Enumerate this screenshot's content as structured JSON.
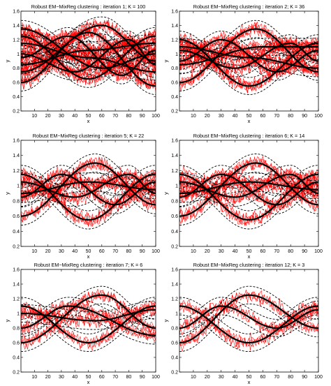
{
  "colors": {
    "noisy_curve": "#ff0000",
    "cluster_mean": "#000000",
    "cluster_band": "#000000",
    "axes": "#000000",
    "background": "#ffffff"
  },
  "chart_data": [
    {
      "type": "line",
      "title": "Robust EM−MixReg clustering : iteration 1; K = 100",
      "xlabel": "x",
      "ylabel": "y",
      "xlim": [
        0,
        100
      ],
      "ylim": [
        0.2,
        1.6
      ],
      "xticks": [
        10,
        20,
        30,
        40,
        50,
        60,
        70,
        80,
        90,
        100
      ],
      "yticks": [
        0.2,
        0.4,
        0.6,
        0.8,
        1,
        1.2,
        1.4,
        1.6
      ],
      "grid": false,
      "clusters": [
        {
          "x": [
            0,
            50,
            100
          ],
          "y": [
            0.6,
            1.3,
            0.55
          ]
        },
        {
          "x": [
            0,
            50,
            100
          ],
          "y": [
            1.25,
            0.65,
            1.25
          ]
        },
        {
          "x": [
            0,
            35,
            75,
            100
          ],
          "y": [
            0.95,
            1.25,
            0.7,
            1.05
          ]
        },
        {
          "x": [
            0,
            40,
            80,
            100
          ],
          "y": [
            1.0,
            0.75,
            1.2,
            0.85
          ]
        },
        {
          "x": [
            0,
            60,
            100
          ],
          "y": [
            0.75,
            1.4,
            0.9
          ]
        },
        {
          "x": [
            0,
            60,
            100
          ],
          "y": [
            1.35,
            0.8,
            1.0
          ]
        },
        {
          "x": [
            0,
            50,
            100
          ],
          "y": [
            0.85,
            1.05,
            1.15
          ]
        },
        {
          "x": [
            0,
            50,
            100
          ],
          "y": [
            1.15,
            0.95,
            0.75
          ]
        }
      ]
    },
    {
      "type": "line",
      "title": "Robust EM−MixReg clustering : iteration 2; K = 36",
      "xlabel": "x",
      "ylabel": "y",
      "xlim": [
        0,
        100
      ],
      "ylim": [
        0.2,
        1.6
      ],
      "xticks": [
        10,
        20,
        30,
        40,
        50,
        60,
        70,
        80,
        90,
        100
      ],
      "yticks": [
        0.2,
        0.4,
        0.6,
        0.8,
        1,
        1.2,
        1.4,
        1.6
      ],
      "grid": false,
      "clusters": [
        {
          "x": [
            0,
            55,
            100
          ],
          "y": [
            0.6,
            1.35,
            0.75
          ]
        },
        {
          "x": [
            0,
            50,
            100
          ],
          "y": [
            1.2,
            0.55,
            1.15
          ]
        },
        {
          "x": [
            0,
            30,
            70,
            100
          ],
          "y": [
            0.9,
            1.2,
            0.75,
            1.05
          ]
        },
        {
          "x": [
            0,
            40,
            80,
            100
          ],
          "y": [
            1.05,
            0.8,
            1.15,
            0.9
          ]
        },
        {
          "x": [
            0,
            60,
            100
          ],
          "y": [
            0.85,
            1.1,
            1.1
          ]
        },
        {
          "x": [
            0,
            50,
            100
          ],
          "y": [
            1.1,
            0.95,
            0.8
          ]
        }
      ]
    },
    {
      "type": "line",
      "title": "Robust EM−MixReg clustering : iteration 5; K = 22",
      "xlabel": "x",
      "ylabel": "y",
      "xlim": [
        0,
        100
      ],
      "ylim": [
        0.2,
        1.6
      ],
      "xticks": [
        10,
        20,
        30,
        40,
        50,
        60,
        70,
        80,
        90,
        100
      ],
      "yticks": [
        0.2,
        0.4,
        0.6,
        0.8,
        1,
        1.2,
        1.4,
        1.6
      ],
      "grid": false,
      "clusters": [
        {
          "x": [
            0,
            55,
            100
          ],
          "y": [
            0.6,
            1.3,
            0.75
          ]
        },
        {
          "x": [
            0,
            50,
            100
          ],
          "y": [
            1.15,
            0.55,
            1.15
          ]
        },
        {
          "x": [
            0,
            30,
            70,
            100
          ],
          "y": [
            0.85,
            1.15,
            0.75,
            1.05
          ]
        },
        {
          "x": [
            0,
            40,
            80,
            100
          ],
          "y": [
            1.05,
            0.85,
            1.15,
            0.9
          ]
        },
        {
          "x": [
            0,
            50,
            100
          ],
          "y": [
            0.9,
            1.05,
            0.95
          ]
        }
      ]
    },
    {
      "type": "line",
      "title": "Robust EM−MixReg clustering : iteration 6; K = 14",
      "xlabel": "x",
      "ylabel": "y",
      "xlim": [
        0,
        100
      ],
      "ylim": [
        0.2,
        1.6
      ],
      "xticks": [
        10,
        20,
        30,
        40,
        50,
        60,
        70,
        80,
        90,
        100
      ],
      "yticks": [
        0.2,
        0.4,
        0.6,
        0.8,
        1,
        1.2,
        1.4,
        1.6
      ],
      "grid": false,
      "clusters": [
        {
          "x": [
            0,
            55,
            100
          ],
          "y": [
            0.6,
            1.3,
            0.75
          ]
        },
        {
          "x": [
            0,
            50,
            100
          ],
          "y": [
            1.15,
            0.55,
            1.15
          ]
        },
        {
          "x": [
            0,
            30,
            70,
            100
          ],
          "y": [
            0.85,
            1.15,
            0.75,
            1.05
          ]
        },
        {
          "x": [
            0,
            40,
            80,
            100
          ],
          "y": [
            1.05,
            0.85,
            1.15,
            0.9
          ]
        },
        {
          "x": [
            0,
            50,
            100
          ],
          "y": [
            0.9,
            1.05,
            0.95
          ]
        }
      ]
    },
    {
      "type": "line",
      "title": "Robust EM−MixReg clustering : iteration 7; K = 6",
      "xlabel": "x",
      "ylabel": "y",
      "xlim": [
        0,
        100
      ],
      "ylim": [
        0.2,
        1.6
      ],
      "xticks": [
        10,
        20,
        30,
        40,
        50,
        60,
        70,
        80,
        90,
        100
      ],
      "yticks": [
        0.2,
        0.4,
        0.6,
        0.8,
        1,
        1.2,
        1.4,
        1.6
      ],
      "grid": false,
      "clusters": [
        {
          "x": [
            0,
            60,
            100
          ],
          "y": [
            0.6,
            1.25,
            0.8
          ]
        },
        {
          "x": [
            0,
            50,
            100
          ],
          "y": [
            1.1,
            0.6,
            1.1
          ]
        },
        {
          "x": [
            0,
            35,
            100
          ],
          "y": [
            0.8,
            1.1,
            0.7
          ]
        },
        {
          "x": [
            0,
            55,
            100
          ],
          "y": [
            1.0,
            0.9,
            1.05
          ]
        }
      ]
    },
    {
      "type": "line",
      "title": "Robust EM−MixReg clustering : iteration 12; K = 3",
      "xlabel": "x",
      "ylabel": "y",
      "xlim": [
        0,
        100
      ],
      "ylim": [
        0.2,
        1.6
      ],
      "xticks": [
        10,
        20,
        30,
        40,
        50,
        60,
        70,
        80,
        90,
        100
      ],
      "yticks": [
        0.2,
        0.4,
        0.6,
        0.8,
        1,
        1.2,
        1.4,
        1.6
      ],
      "grid": false,
      "clusters": [
        {
          "x": [
            0,
            50,
            100
          ],
          "y": [
            0.6,
            1.25,
            0.8
          ]
        },
        {
          "x": [
            0,
            50,
            100
          ],
          "y": [
            1.1,
            0.6,
            1.1
          ]
        },
        {
          "x": [
            0,
            30,
            70,
            100
          ],
          "y": [
            0.8,
            1.1,
            0.8,
            1.05
          ]
        }
      ]
    }
  ]
}
